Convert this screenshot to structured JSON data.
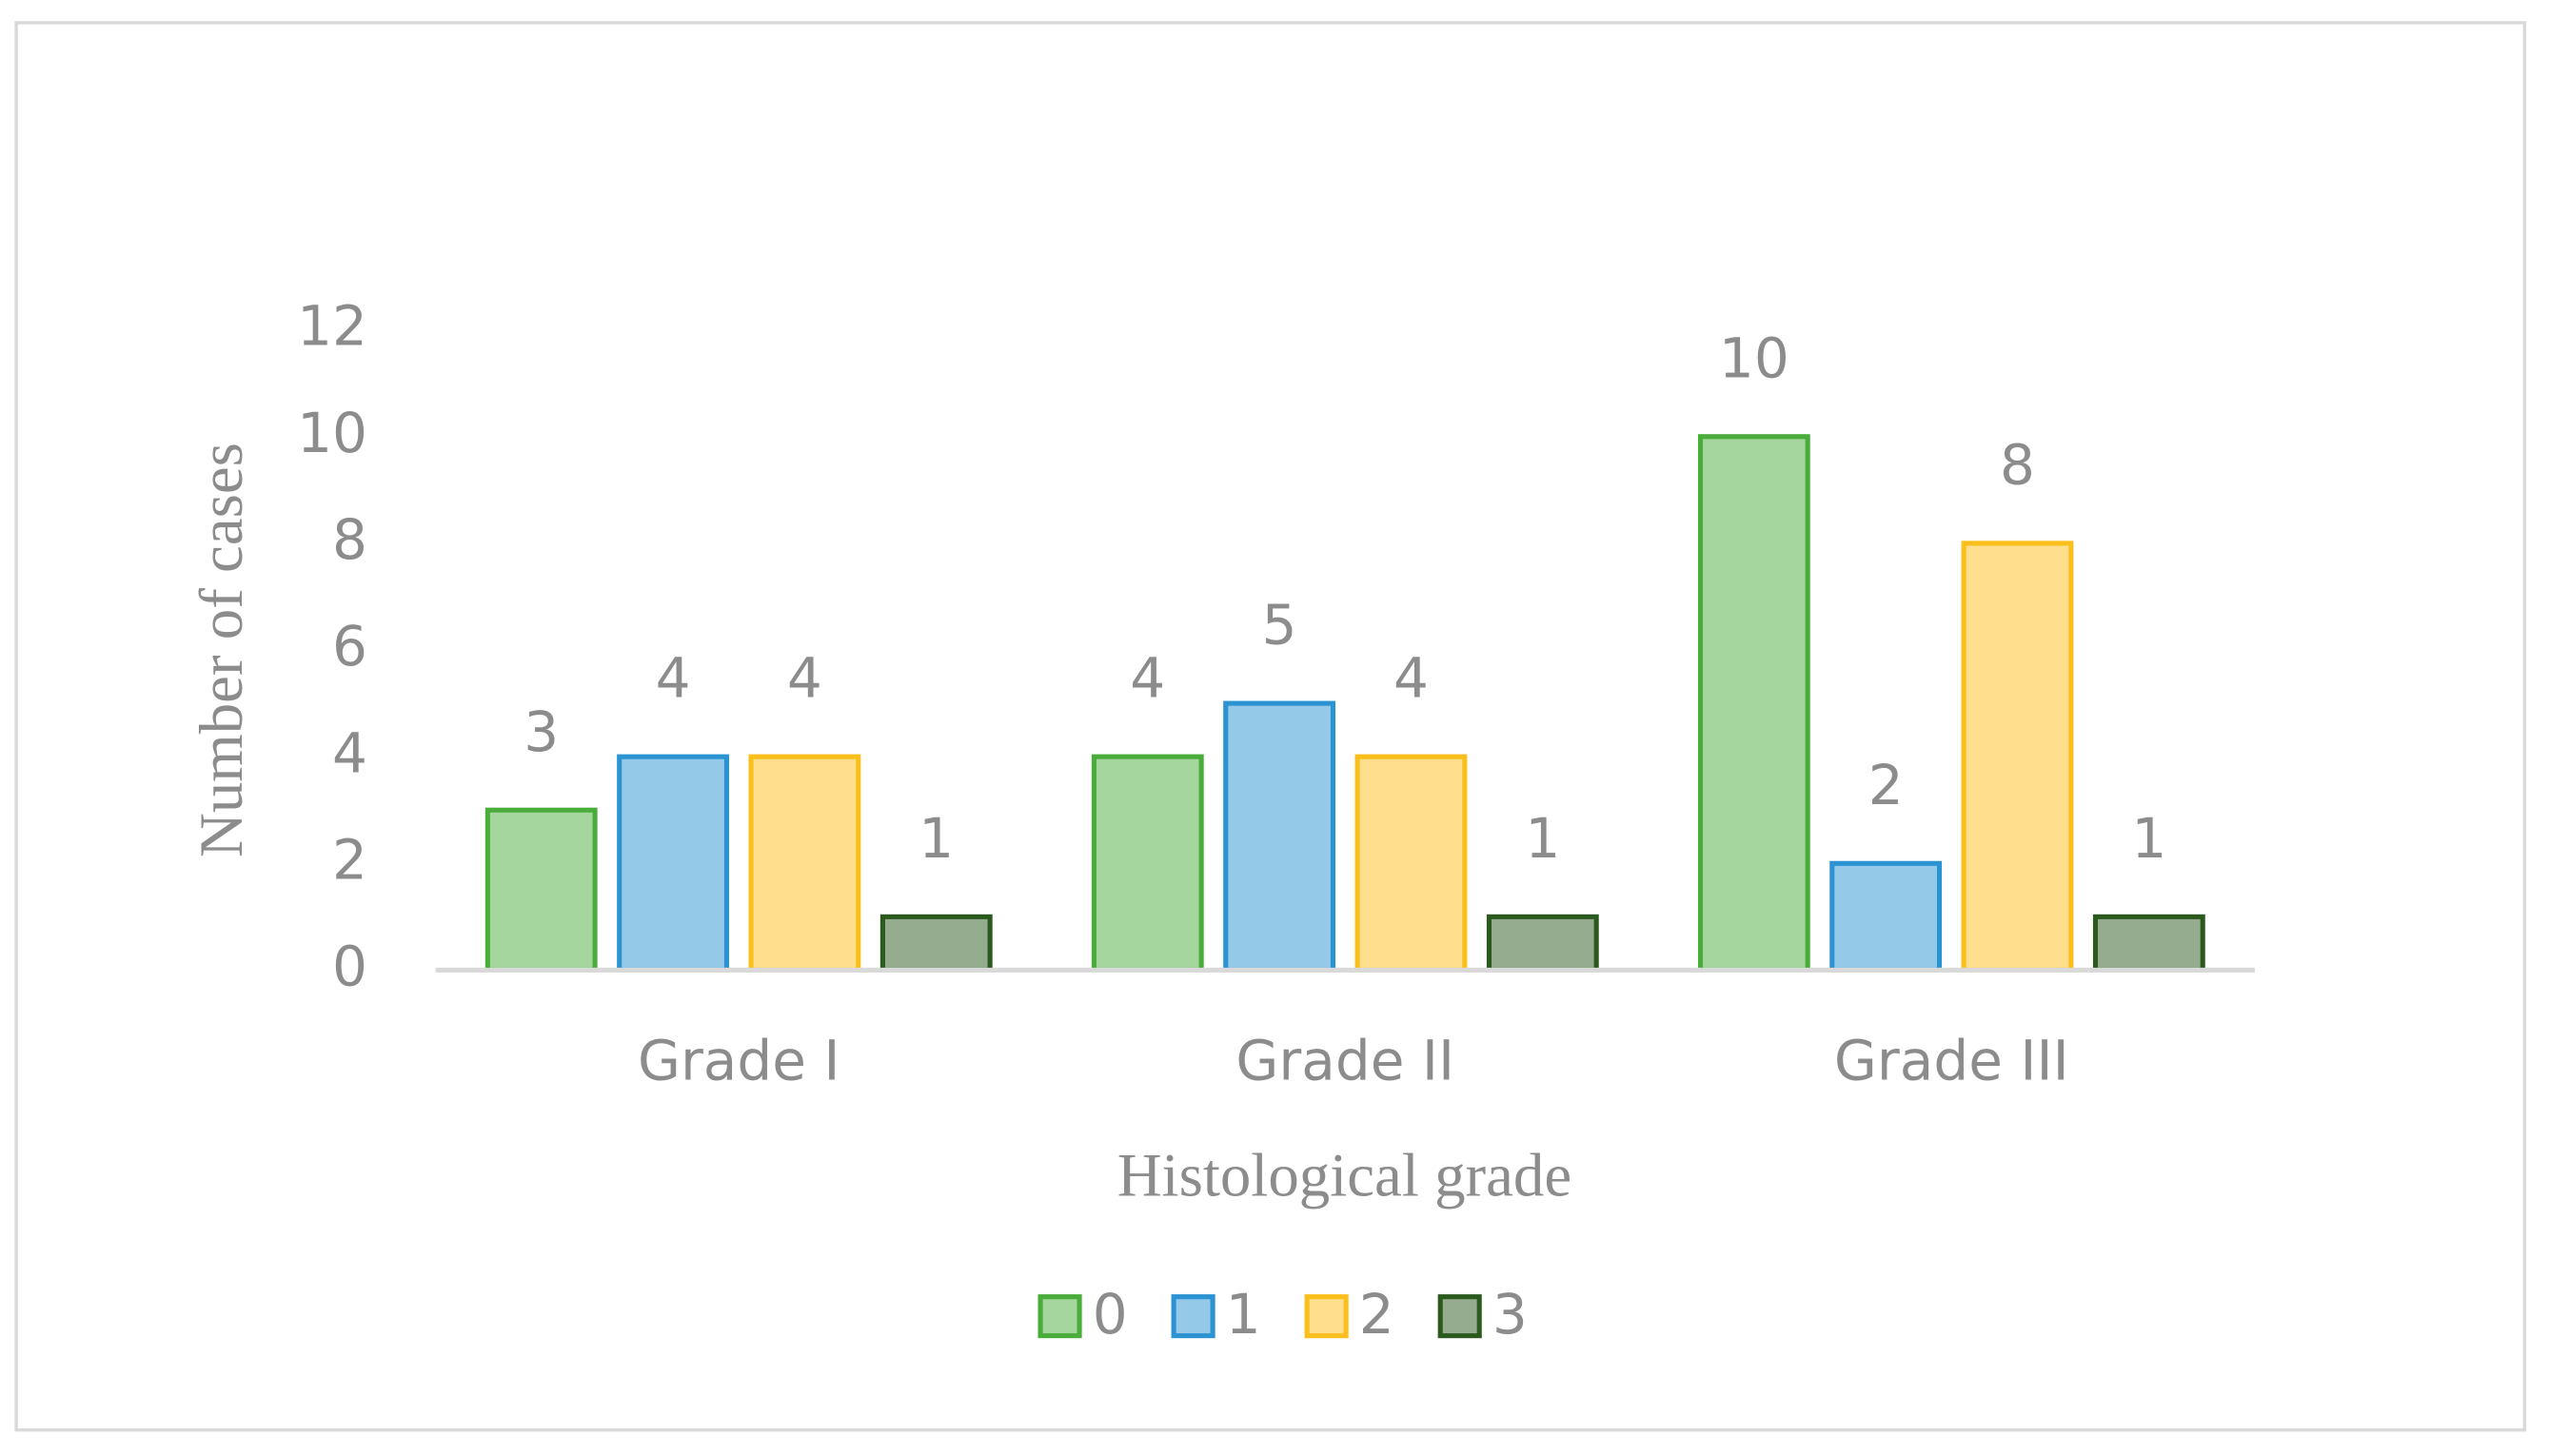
{
  "chart_data": {
    "type": "bar",
    "x_label": "Histological grade",
    "y_label": "Number of cases",
    "categories": [
      "Grade I",
      "Grade II",
      "Grade III"
    ],
    "series": [
      {
        "name": "0",
        "color": "#4aad3b",
        "values": [
          3,
          4,
          10
        ]
      },
      {
        "name": "1",
        "color": "#2c93d2",
        "values": [
          4,
          5,
          2
        ]
      },
      {
        "name": "2",
        "color": "#fbbf1c",
        "values": [
          4,
          4,
          8
        ]
      },
      {
        "name": "3",
        "color": "#2b5a1f",
        "values": [
          1,
          1,
          1
        ]
      }
    ],
    "ylim": [
      0,
      12
    ],
    "yticks": [
      0,
      2,
      4,
      6,
      8,
      10,
      12
    ],
    "grid": false,
    "legend": "bottom"
  }
}
